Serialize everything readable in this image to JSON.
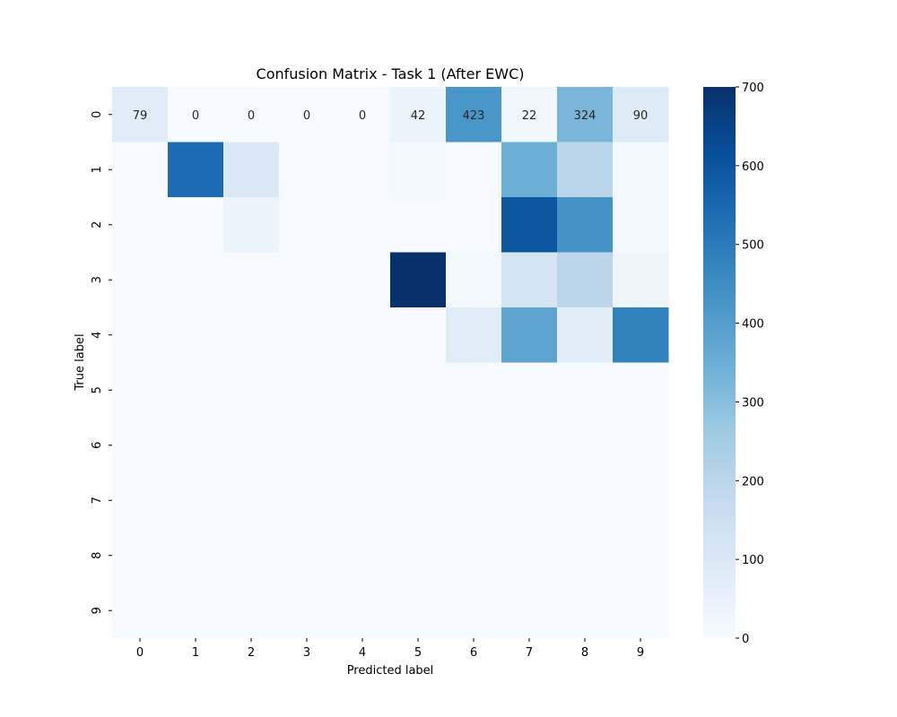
{
  "chart_data": {
    "type": "heatmap",
    "title": "Confusion Matrix - Task 1 (After EWC)",
    "xlabel": "Predicted label",
    "ylabel": "True label",
    "x_categories": [
      "0",
      "1",
      "2",
      "3",
      "4",
      "5",
      "6",
      "7",
      "8",
      "9"
    ],
    "y_categories": [
      "0",
      "1",
      "2",
      "3",
      "4",
      "5",
      "6",
      "7",
      "8",
      "9"
    ],
    "values": [
      [
        79,
        0,
        0,
        0,
        0,
        42,
        423,
        22,
        324,
        90
      ],
      [
        0,
        540,
        100,
        0,
        0,
        10,
        5,
        350,
        200,
        10
      ],
      [
        0,
        0,
        40,
        0,
        0,
        5,
        5,
        600,
        430,
        10
      ],
      [
        0,
        0,
        0,
        0,
        0,
        700,
        10,
        120,
        200,
        30
      ],
      [
        0,
        0,
        0,
        0,
        0,
        0,
        80,
        380,
        70,
        480
      ],
      [
        0,
        0,
        0,
        0,
        0,
        0,
        0,
        0,
        0,
        0
      ],
      [
        0,
        0,
        0,
        0,
        0,
        0,
        0,
        0,
        0,
        0
      ],
      [
        0,
        0,
        0,
        0,
        0,
        0,
        0,
        0,
        0,
        0
      ],
      [
        0,
        0,
        0,
        0,
        0,
        0,
        0,
        0,
        0,
        0
      ],
      [
        0,
        0,
        0,
        0,
        0,
        0,
        0,
        0,
        0,
        0
      ]
    ],
    "annotated_row": 0,
    "colorscale": "Blues",
    "colorbar": {
      "min": 0,
      "max": 700,
      "ticks": [
        0,
        100,
        200,
        300,
        400,
        500,
        600,
        700
      ]
    }
  }
}
